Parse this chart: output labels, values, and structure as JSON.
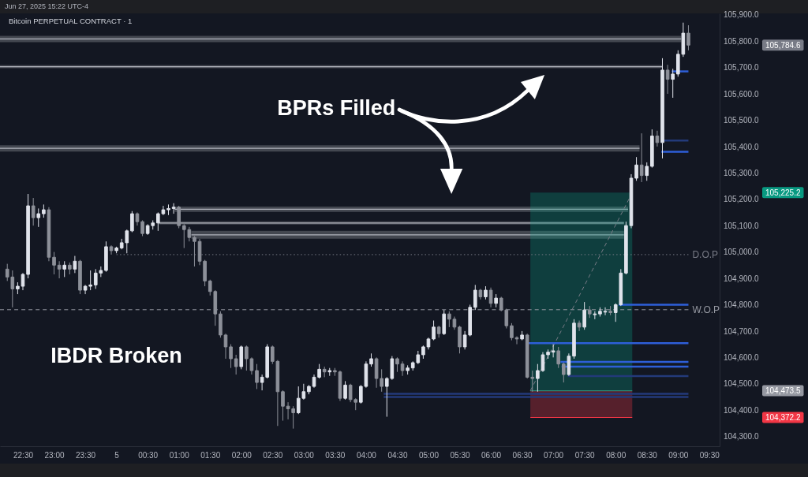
{
  "chart_data": {
    "type": "candlestick",
    "title": "Bitcoin PERPETUAL CONTRACT · 1",
    "subtitle": "Jun 27, 2025 15:22 UTC-4",
    "xlim": [
      "2025-06-04T22:08",
      "2025-06-05T09:40"
    ],
    "ylim": [
      104263,
      105905
    ],
    "xticks": [
      {
        "value": "2025-06-04T22:30",
        "label": "22:30"
      },
      {
        "value": "2025-06-04T23:00",
        "label": "23:00"
      },
      {
        "value": "2025-06-04T23:30",
        "label": "23:30"
      },
      {
        "value": "2025-06-05T00:00",
        "label": "5"
      },
      {
        "value": "2025-06-05T00:30",
        "label": "00:30"
      },
      {
        "value": "2025-06-05T01:00",
        "label": "01:00"
      },
      {
        "value": "2025-06-05T01:30",
        "label": "01:30"
      },
      {
        "value": "2025-06-05T02:00",
        "label": "02:00"
      },
      {
        "value": "2025-06-05T02:30",
        "label": "02:30"
      },
      {
        "value": "2025-06-05T03:00",
        "label": "03:00"
      },
      {
        "value": "2025-06-05T03:30",
        "label": "03:30"
      },
      {
        "value": "2025-06-05T04:00",
        "label": "04:00"
      },
      {
        "value": "2025-06-05T04:30",
        "label": "04:30"
      },
      {
        "value": "2025-06-05T05:00",
        "label": "05:00"
      },
      {
        "value": "2025-06-05T05:30",
        "label": "05:30"
      },
      {
        "value": "2025-06-05T06:00",
        "label": "06:00"
      },
      {
        "value": "2025-06-05T06:30",
        "label": "06:30"
      },
      {
        "value": "2025-06-05T07:00",
        "label": "07:00"
      },
      {
        "value": "2025-06-05T07:30",
        "label": "07:30"
      },
      {
        "value": "2025-06-05T08:00",
        "label": "08:00"
      },
      {
        "value": "2025-06-05T08:30",
        "label": "08:30"
      },
      {
        "value": "2025-06-05T09:00",
        "label": "09:00"
      },
      {
        "value": "2025-06-05T09:30",
        "label": "09:30"
      }
    ],
    "yticks": [
      {
        "value": 104300,
        "label": "104,300.0"
      },
      {
        "value": 104400,
        "label": "104,400.0"
      },
      {
        "value": 104500,
        "label": "104,500.0"
      },
      {
        "value": 104600,
        "label": "104,600.0"
      },
      {
        "value": 104700,
        "label": "104,700.0"
      },
      {
        "value": 104800,
        "label": "104,800.0"
      },
      {
        "value": 104900,
        "label": "104,900.0"
      },
      {
        "value": 105000,
        "label": "105,000.0"
      },
      {
        "value": 105100,
        "label": "105,100.0"
      },
      {
        "value": 105200,
        "label": "105,200.0"
      },
      {
        "value": 105300,
        "label": "105,300.0"
      },
      {
        "value": 105400,
        "label": "105,400.0"
      },
      {
        "value": 105500,
        "label": "105,500.0"
      },
      {
        "value": 105600,
        "label": "105,600.0"
      },
      {
        "value": 105700,
        "label": "105,700.0"
      },
      {
        "value": 105800,
        "label": "105,800.0"
      },
      {
        "value": 105900,
        "label": "105,900.0"
      }
    ],
    "x": [
      "2025-06-04T22:15",
      "2025-06-04T22:20",
      "2025-06-04T22:25",
      "2025-06-04T22:30",
      "2025-06-04T22:35",
      "2025-06-04T22:40",
      "2025-06-04T22:45",
      "2025-06-04T22:50",
      "2025-06-04T22:55",
      "2025-06-04T23:00",
      "2025-06-04T23:05",
      "2025-06-04T23:10",
      "2025-06-04T23:15",
      "2025-06-04T23:20",
      "2025-06-04T23:25",
      "2025-06-04T23:30",
      "2025-06-04T23:35",
      "2025-06-04T23:40",
      "2025-06-04T23:45",
      "2025-06-04T23:50",
      "2025-06-04T23:55",
      "2025-06-05T00:00",
      "2025-06-05T00:05",
      "2025-06-05T00:10",
      "2025-06-05T00:15",
      "2025-06-05T00:20",
      "2025-06-05T00:25",
      "2025-06-05T00:30",
      "2025-06-05T00:35",
      "2025-06-05T00:40",
      "2025-06-05T00:45",
      "2025-06-05T00:50",
      "2025-06-05T00:55",
      "2025-06-05T01:00",
      "2025-06-05T01:05",
      "2025-06-05T01:10",
      "2025-06-05T01:15",
      "2025-06-05T01:20",
      "2025-06-05T01:25",
      "2025-06-05T01:30",
      "2025-06-05T01:35",
      "2025-06-05T01:40",
      "2025-06-05T01:45",
      "2025-06-05T01:50",
      "2025-06-05T01:55",
      "2025-06-05T02:00",
      "2025-06-05T02:05",
      "2025-06-05T02:10",
      "2025-06-05T02:15",
      "2025-06-05T02:20",
      "2025-06-05T02:25",
      "2025-06-05T02:30",
      "2025-06-05T02:35",
      "2025-06-05T02:40",
      "2025-06-05T02:45",
      "2025-06-05T02:50",
      "2025-06-05T02:55",
      "2025-06-05T03:00",
      "2025-06-05T03:05",
      "2025-06-05T03:10",
      "2025-06-05T03:15",
      "2025-06-05T03:20",
      "2025-06-05T03:25",
      "2025-06-05T03:30",
      "2025-06-05T03:35",
      "2025-06-05T03:40",
      "2025-06-05T03:45",
      "2025-06-05T03:50",
      "2025-06-05T03:55",
      "2025-06-05T04:00",
      "2025-06-05T04:05",
      "2025-06-05T04:10",
      "2025-06-05T04:15",
      "2025-06-05T04:20",
      "2025-06-05T04:25",
      "2025-06-05T04:30",
      "2025-06-05T04:35",
      "2025-06-05T04:40",
      "2025-06-05T04:45",
      "2025-06-05T04:50",
      "2025-06-05T04:55",
      "2025-06-05T05:00",
      "2025-06-05T05:05",
      "2025-06-05T05:10",
      "2025-06-05T05:15",
      "2025-06-05T05:20",
      "2025-06-05T05:25",
      "2025-06-05T05:30",
      "2025-06-05T05:35",
      "2025-06-05T05:40",
      "2025-06-05T05:45",
      "2025-06-05T05:50",
      "2025-06-05T05:55",
      "2025-06-05T06:00",
      "2025-06-05T06:05",
      "2025-06-05T06:10",
      "2025-06-05T06:15",
      "2025-06-05T06:20",
      "2025-06-05T06:25",
      "2025-06-05T06:30",
      "2025-06-05T06:35",
      "2025-06-05T06:40",
      "2025-06-05T06:45",
      "2025-06-05T06:50",
      "2025-06-05T06:55",
      "2025-06-05T07:00",
      "2025-06-05T07:05",
      "2025-06-05T07:10",
      "2025-06-05T07:15",
      "2025-06-05T07:20",
      "2025-06-05T07:25",
      "2025-06-05T07:30",
      "2025-06-05T07:35",
      "2025-06-05T07:40",
      "2025-06-05T07:45",
      "2025-06-05T07:50",
      "2025-06-05T07:55",
      "2025-06-05T08:00",
      "2025-06-05T08:05",
      "2025-06-05T08:10",
      "2025-06-05T08:15",
      "2025-06-05T08:20",
      "2025-06-05T08:25",
      "2025-06-05T08:30",
      "2025-06-05T08:35",
      "2025-06-05T08:40",
      "2025-06-05T08:45",
      "2025-06-05T08:50",
      "2025-06-05T08:55",
      "2025-06-05T09:00",
      "2025-06-05T09:05",
      "2025-06-05T09:10"
    ],
    "ohlc": [
      [
        104935,
        104955,
        104890,
        104905
      ],
      [
        104905,
        104930,
        104790,
        104860
      ],
      [
        104860,
        104885,
        104840,
        104870
      ],
      [
        104870,
        104920,
        104855,
        104915
      ],
      [
        104915,
        105220,
        104900,
        105175
      ],
      [
        105175,
        105205,
        105100,
        105130
      ],
      [
        105130,
        105165,
        105095,
        105145
      ],
      [
        105145,
        105180,
        105130,
        105160
      ],
      [
        105160,
        105170,
        104965,
        104980
      ],
      [
        104980,
        105000,
        104915,
        104950
      ],
      [
        104950,
        104965,
        104900,
        104935
      ],
      [
        104935,
        104965,
        104905,
        104950
      ],
      [
        104950,
        104960,
        104915,
        104935
      ],
      [
        104935,
        104985,
        104920,
        104965
      ],
      [
        104965,
        104970,
        104840,
        104855
      ],
      [
        104855,
        104875,
        104840,
        104870
      ],
      [
        104870,
        104930,
        104855,
        104875
      ],
      [
        104875,
        104935,
        104860,
        104920
      ],
      [
        104920,
        104945,
        104905,
        104930
      ],
      [
        104930,
        105040,
        104925,
        105020
      ],
      [
        105020,
        105025,
        104990,
        105005
      ],
      [
        105005,
        105020,
        104995,
        105015
      ],
      [
        105015,
        105050,
        105010,
        105035
      ],
      [
        105035,
        105085,
        104995,
        105080
      ],
      [
        105080,
        105155,
        105075,
        105145
      ],
      [
        105145,
        105150,
        105100,
        105115
      ],
      [
        105115,
        105120,
        105060,
        105070
      ],
      [
        105070,
        105105,
        105065,
        105100
      ],
      [
        105100,
        105120,
        105085,
        105110
      ],
      [
        105110,
        105150,
        105080,
        105145
      ],
      [
        105145,
        105175,
        105140,
        105160
      ],
      [
        105160,
        105180,
        105140,
        105165
      ],
      [
        105165,
        105185,
        105145,
        105170
      ],
      [
        105170,
        105175,
        105090,
        105100
      ],
      [
        105100,
        105105,
        105015,
        105085
      ],
      [
        105085,
        105095,
        105040,
        105055
      ],
      [
        105055,
        105060,
        104945,
        105040
      ],
      [
        105040,
        105050,
        104950,
        104965
      ],
      [
        104965,
        104970,
        104870,
        104890
      ],
      [
        104890,
        104895,
        104835,
        104850
      ],
      [
        104850,
        104855,
        104720,
        104765
      ],
      [
        104765,
        104775,
        104675,
        104685
      ],
      [
        104685,
        104690,
        104595,
        104640
      ],
      [
        104640,
        104650,
        104560,
        104595
      ],
      [
        104595,
        104610,
        104535,
        104565
      ],
      [
        104565,
        104645,
        104555,
        104640
      ],
      [
        104640,
        104645,
        104550,
        104595
      ],
      [
        104595,
        104600,
        104535,
        104550
      ],
      [
        104550,
        104575,
        104480,
        104505
      ],
      [
        104505,
        104535,
        104475,
        104525
      ],
      [
        104525,
        104650,
        104520,
        104640
      ],
      [
        104640,
        104645,
        104575,
        104585
      ],
      [
        104585,
        104590,
        104340,
        104470
      ],
      [
        104470,
        104475,
        104360,
        104415
      ],
      [
        104415,
        104430,
        104365,
        104405
      ],
      [
        104405,
        104415,
        104330,
        104390
      ],
      [
        104390,
        104490,
        104385,
        104445
      ],
      [
        104445,
        104500,
        104440,
        104470
      ],
      [
        104470,
        104495,
        104460,
        104490
      ],
      [
        104490,
        104535,
        104485,
        104525
      ],
      [
        104525,
        104575,
        104520,
        104555
      ],
      [
        104555,
        104565,
        104525,
        104545
      ],
      [
        104545,
        104560,
        104530,
        104550
      ],
      [
        104550,
        104560,
        104530,
        104545
      ],
      [
        104545,
        104550,
        104435,
        104445
      ],
      [
        104445,
        104510,
        104440,
        104495
      ],
      [
        104495,
        104500,
        104430,
        104440
      ],
      [
        104440,
        104445,
        104400,
        104430
      ],
      [
        104430,
        104495,
        104425,
        104490
      ],
      [
        104490,
        104585,
        104485,
        104575
      ],
      [
        104575,
        104615,
        104565,
        104595
      ],
      [
        104595,
        104600,
        104485,
        104520
      ],
      [
        104520,
        104555,
        104470,
        104490
      ],
      [
        104490,
        104525,
        104375,
        104520
      ],
      [
        104520,
        104605,
        104515,
        104595
      ],
      [
        104595,
        104600,
        104545,
        104575
      ],
      [
        104575,
        104585,
        104530,
        104550
      ],
      [
        104550,
        104570,
        104535,
        104560
      ],
      [
        104560,
        104585,
        104550,
        104580
      ],
      [
        104580,
        104625,
        104575,
        104610
      ],
      [
        104610,
        104645,
        104595,
        104640
      ],
      [
        104640,
        104675,
        104630,
        104670
      ],
      [
        104670,
        104740,
        104665,
        104715
      ],
      [
        104715,
        104720,
        104675,
        104690
      ],
      [
        104690,
        104780,
        104685,
        104765
      ],
      [
        104765,
        104775,
        104715,
        104745
      ],
      [
        104745,
        104755,
        104705,
        104715
      ],
      [
        104715,
        104720,
        104615,
        104640
      ],
      [
        104640,
        104700,
        104630,
        104685
      ],
      [
        104685,
        104800,
        104680,
        104790
      ],
      [
        104790,
        104875,
        104780,
        104855
      ],
      [
        104855,
        104860,
        104820,
        104830
      ],
      [
        104830,
        104870,
        104820,
        104855
      ],
      [
        104855,
        104865,
        104790,
        104805
      ],
      [
        104805,
        104840,
        104790,
        104825
      ],
      [
        104825,
        104830,
        104775,
        104780
      ],
      [
        104780,
        104785,
        104710,
        104720
      ],
      [
        104720,
        104730,
        104665,
        104675
      ],
      [
        104675,
        104680,
        104650,
        104670
      ],
      [
        104670,
        104700,
        104665,
        104685
      ],
      [
        104685,
        104690,
        104520,
        104525
      ],
      [
        104525,
        104550,
        104470,
        104520
      ],
      [
        104520,
        104575,
        104470,
        104550
      ],
      [
        104550,
        104620,
        104545,
        104610
      ],
      [
        104610,
        104630,
        104595,
        104620
      ],
      [
        104620,
        104650,
        104600,
        104625
      ],
      [
        104625,
        104640,
        104560,
        104575
      ],
      [
        104575,
        104580,
        104505,
        104535
      ],
      [
        104535,
        104615,
        104530,
        104605
      ],
      [
        104605,
        104745,
        104595,
        104730
      ],
      [
        104730,
        104740,
        104700,
        104715
      ],
      [
        104715,
        104810,
        104705,
        104780
      ],
      [
        104780,
        104795,
        104750,
        104765
      ],
      [
        104765,
        104775,
        104745,
        104765
      ],
      [
        104765,
        104790,
        104755,
        104775
      ],
      [
        104775,
        104790,
        104760,
        104775
      ],
      [
        104775,
        104795,
        104760,
        104770
      ],
      [
        104770,
        104805,
        104735,
        104800
      ],
      [
        104800,
        104935,
        104795,
        104920
      ],
      [
        104920,
        105115,
        104915,
        105100
      ],
      [
        105100,
        105295,
        105090,
        105280
      ],
      [
        105280,
        105360,
        105270,
        105330
      ],
      [
        105330,
        105450,
        105265,
        105290
      ],
      [
        105290,
        105340,
        105270,
        105325
      ],
      [
        105325,
        105465,
        105320,
        105440
      ],
      [
        105440,
        105460,
        105400,
        105415
      ],
      [
        105415,
        105735,
        105355,
        105690
      ],
      [
        105690,
        105710,
        105600,
        105655
      ],
      [
        105655,
        105695,
        105585,
        105675
      ],
      [
        105675,
        105765,
        105665,
        105750
      ],
      [
        105750,
        105870,
        105740,
        105830
      ],
      [
        105830,
        105860,
        105765,
        105784.6
      ]
    ],
    "colors": [
      "#8d9099",
      "#8d9099",
      "#e0e3eb",
      "#e0e3eb",
      "#e0e3eb",
      "#8d9099",
      "#e0e3eb",
      "#e0e3eb",
      "#8d9099",
      "#8d9099",
      "#8d9099",
      "#e0e3eb",
      "#8d9099",
      "#e0e3eb",
      "#8d9099",
      "#e0e3eb",
      "#e0e3eb",
      "#e0e3eb",
      "#e0e3eb",
      "#e0e3eb",
      "#8d9099",
      "#e0e3eb",
      "#e0e3eb",
      "#e0e3eb",
      "#e0e3eb",
      "#8d9099",
      "#8d9099",
      "#e0e3eb",
      "#e0e3eb",
      "#e0e3eb",
      "#e0e3eb",
      "#e0e3eb",
      "#e0e3eb",
      "#8d9099",
      "#8d9099",
      "#8d9099",
      "#8d9099",
      "#8d9099",
      "#8d9099",
      "#8d9099",
      "#8d9099",
      "#8d9099",
      "#8d9099",
      "#8d9099",
      "#8d9099",
      "#e0e3eb",
      "#8d9099",
      "#8d9099",
      "#8d9099",
      "#e0e3eb",
      "#e0e3eb",
      "#8d9099",
      "#8d9099",
      "#8d9099",
      "#8d9099",
      "#8d9099",
      "#e0e3eb",
      "#e0e3eb",
      "#e0e3eb",
      "#e0e3eb",
      "#e0e3eb",
      "#8d9099",
      "#e0e3eb",
      "#8d9099",
      "#8d9099",
      "#e0e3eb",
      "#8d9099",
      "#8d9099",
      "#e0e3eb",
      "#e0e3eb",
      "#e0e3eb",
      "#8d9099",
      "#8d9099",
      "#e0e3eb",
      "#e0e3eb",
      "#8d9099",
      "#8d9099",
      "#e0e3eb",
      "#e0e3eb",
      "#e0e3eb",
      "#e0e3eb",
      "#e0e3eb",
      "#e0e3eb",
      "#8d9099",
      "#e0e3eb",
      "#8d9099",
      "#8d9099",
      "#8d9099",
      "#e0e3eb",
      "#e0e3eb",
      "#e0e3eb",
      "#8d9099",
      "#e0e3eb",
      "#8d9099",
      "#e0e3eb",
      "#8d9099",
      "#8d9099",
      "#8d9099",
      "#8d9099",
      "#e0e3eb",
      "#8d9099",
      "#8d9099",
      "#e0e3eb",
      "#e0e3eb",
      "#e0e3eb",
      "#e0e3eb",
      "#8d9099",
      "#8d9099",
      "#e0e3eb",
      "#e0e3eb",
      "#8d9099",
      "#e0e3eb",
      "#8d9099",
      "#e0e3eb",
      "#e0e3eb",
      "#e0e3eb",
      "#8d9099",
      "#e0e3eb",
      "#e0e3eb",
      "#e0e3eb",
      "#e0e3eb",
      "#e0e3eb",
      "#8d9099",
      "#e0e3eb",
      "#e0e3eb",
      "#8d9099",
      "#e0e3eb",
      "#8d9099",
      "#e0e3eb",
      "#e0e3eb",
      "#e0e3eb",
      "#8d9099"
    ],
    "series": [
      {
        "type": "line",
        "x": [
          "2025-06-04T22:08",
          "2025-06-05T09:03"
        ],
        "values": [
          105808,
          105808
        ],
        "lower": [
          105796,
          105796
        ],
        "upper": [
          105820,
          105820
        ],
        "color": "#b2b5be"
      },
      {
        "type": "line",
        "x": [
          "2025-06-04T22:08",
          "2025-06-05T08:45"
        ],
        "values": [
          105703,
          105703
        ],
        "lower": [
          105697,
          105697
        ],
        "upper": [
          105709,
          105709
        ],
        "color": "#b2b5be"
      },
      {
        "type": "line",
        "x": [
          "2025-06-04T22:08",
          "2025-06-05T08:23"
        ],
        "values": [
          105393,
          105393
        ],
        "lower": [
          105381,
          105381
        ],
        "upper": [
          105405,
          105405
        ],
        "color": "#b2b5be"
      },
      {
        "type": "line",
        "x": [
          "2025-06-05T00:56",
          "2025-06-05T08:12"
        ],
        "values": [
          105162,
          105162
        ],
        "lower": [
          105152,
          105152
        ],
        "upper": [
          105172,
          105172
        ],
        "color": "#b2b5be"
      },
      {
        "type": "line",
        "x": [
          "2025-06-05T00:41",
          "2025-06-05T08:08"
        ],
        "values": [
          105110,
          105110
        ],
        "lower": [
          105104,
          105104
        ],
        "upper": [
          105116,
          105116
        ],
        "color": "#b2b5be"
      },
      {
        "type": "line",
        "x": [
          "2025-06-05T01:12",
          "2025-06-05T08:08"
        ],
        "values": [
          105065,
          105065
        ],
        "lower": [
          105050,
          105050
        ],
        "upper": [
          105080,
          105080
        ],
        "color": "#b2b5be"
      },
      {
        "type": "line",
        "x": [
          "2025-06-05T06:38",
          "2025-06-05T08:16"
        ],
        "values": [
          104473.5,
          104473.5
        ],
        "lower": [
          104473.5,
          104473.5
        ],
        "upper": [
          105225.2,
          105225.2
        ],
        "color": "#089981"
      },
      {
        "type": "line",
        "x": [
          "2025-06-05T06:38",
          "2025-06-05T08:16"
        ],
        "values": [
          104372.2,
          104372.2
        ],
        "lower": [
          104372.2,
          104372.2
        ],
        "upper": [
          104473.5,
          104473.5
        ],
        "color": "#f23645"
      },
      {
        "type": "line",
        "x": [
          "2025-06-05T06:38",
          "2025-06-05T08:16"
        ],
        "values": [
          104473.5,
          105225.2
        ],
        "color": "#787b86",
        "line_style": "dashed"
      },
      {
        "type": "line",
        "name": "D.O.P",
        "x": [
          "2025-06-05T00:00",
          "2025-06-05T09:10"
        ],
        "values": [
          104990,
          104990
        ],
        "color": "#787b86",
        "line_style": "dotted"
      },
      {
        "type": "line",
        "name": "W.O.P",
        "x": [
          "2025-06-04T22:08",
          "2025-06-05T09:10"
        ],
        "values": [
          104781,
          104781
        ],
        "color": "#9598a1",
        "line_style": "dashed"
      },
      {
        "type": "line",
        "x": [
          "2025-06-05T08:54",
          "2025-06-05T09:10"
        ],
        "values": [
          105685,
          105685
        ],
        "color": "#2e5fd8"
      },
      {
        "type": "line",
        "x": [
          "2025-06-05T08:44",
          "2025-06-05T09:10"
        ],
        "values": [
          105423,
          105423
        ],
        "color": "#233a7a"
      },
      {
        "type": "line",
        "x": [
          "2025-06-05T08:44",
          "2025-06-05T09:10"
        ],
        "values": [
          105380,
          105380
        ],
        "color": "#2e5fd8"
      },
      {
        "type": "line",
        "x": [
          "2025-06-05T08:03",
          "2025-06-05T09:10"
        ],
        "values": [
          104800,
          104800
        ],
        "color": "#2e5fd8"
      },
      {
        "type": "line",
        "x": [
          "2025-06-05T06:36",
          "2025-06-05T09:10"
        ],
        "values": [
          104654,
          104654
        ],
        "color": "#2e5fd8"
      },
      {
        "type": "line",
        "x": [
          "2025-06-05T07:07",
          "2025-06-05T09:10"
        ],
        "values": [
          104583,
          104583
        ],
        "color": "#2e5fd8"
      },
      {
        "type": "line",
        "x": [
          "2025-06-05T07:08",
          "2025-06-05T09:10"
        ],
        "values": [
          104565,
          104565
        ],
        "color": "#2e5fd8"
      },
      {
        "type": "line",
        "x": [
          "2025-06-05T07:14",
          "2025-06-05T09:10"
        ],
        "values": [
          104529,
          104529
        ],
        "color": "#233a7a"
      },
      {
        "type": "line",
        "x": [
          "2025-06-05T04:17",
          "2025-06-05T09:10"
        ],
        "values": [
          104462,
          104462
        ],
        "color": "#233a7a"
      },
      {
        "type": "line",
        "x": [
          "2025-06-05T04:17",
          "2025-06-05T09:10"
        ],
        "values": [
          104450,
          104450
        ],
        "color": "#233a7a"
      }
    ],
    "annotations": [
      "BPRs Filled",
      "IBDR Broken",
      "105,784.6",
      "105,225.2",
      "104,473.5",
      "104,372.2"
    ]
  }
}
